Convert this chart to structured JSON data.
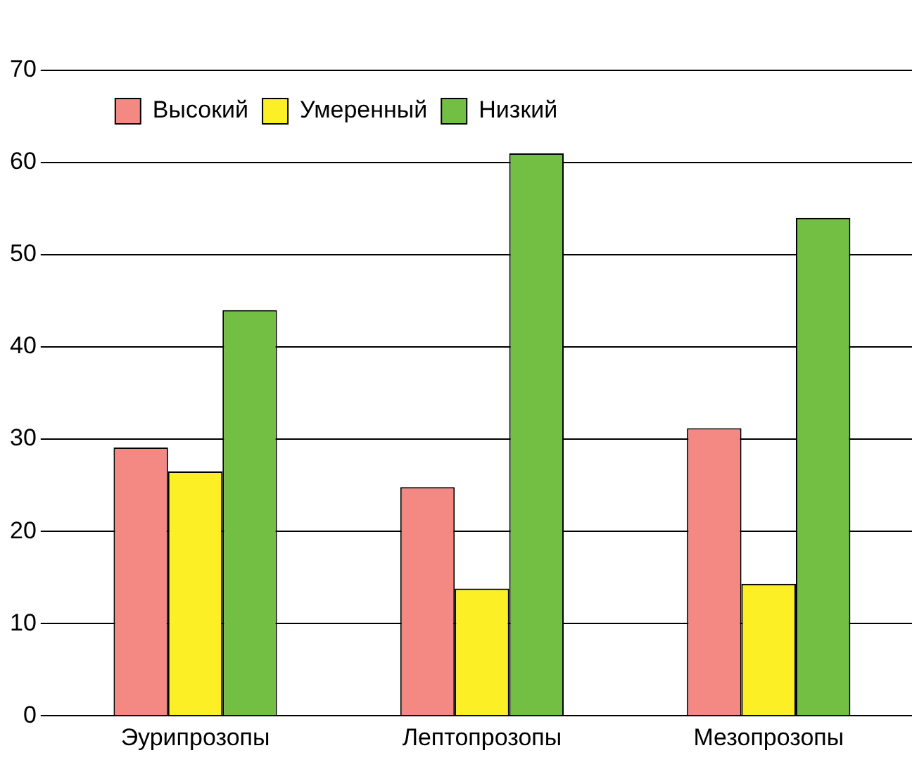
{
  "chart_data": {
    "type": "bar",
    "categories": [
      "Эурипрозопы",
      "Лептопрозопы",
      "Мезопрозопы"
    ],
    "series": [
      {
        "name": "Высокий",
        "color": "#f48882",
        "values": [
          29.1,
          24.8,
          31.2
        ]
      },
      {
        "name": "Умеренный",
        "color": "#fcef26",
        "values": [
          26.5,
          13.8,
          14.3
        ]
      },
      {
        "name": "Низкий",
        "color": "#72bf44",
        "values": [
          44,
          61,
          54
        ]
      }
    ],
    "ylim": [
      0,
      70
    ],
    "yticks": [
      0,
      10,
      20,
      30,
      40,
      50,
      60,
      70
    ],
    "grid": "y",
    "legend": "top left"
  }
}
